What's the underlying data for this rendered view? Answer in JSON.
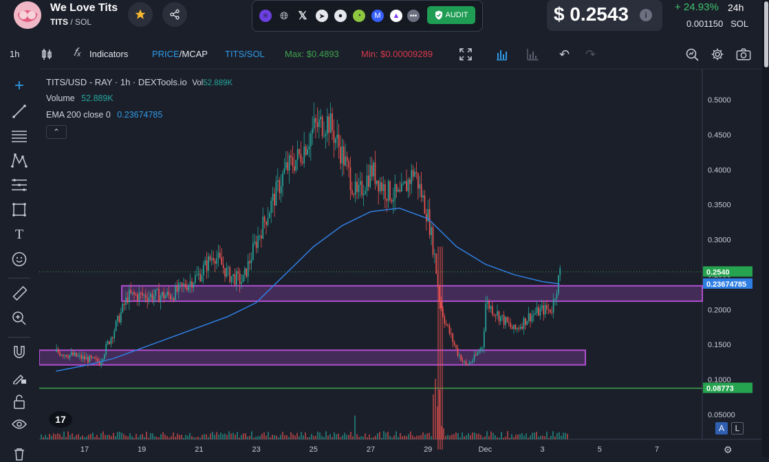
{
  "token": {
    "name": "We Love Tits",
    "symbol": "TITS",
    "chain": "SOL"
  },
  "social": {
    "icons": [
      "solana-icon",
      "globe-icon",
      "x-icon",
      "telegram-icon",
      "reddit-icon",
      "coingecko-icon",
      "coinmarketcap-icon",
      "dextools-icon",
      "more-icon"
    ],
    "audit_label": "AUDIT"
  },
  "price": {
    "usd": "$ 0.2543",
    "change": "+ 24.93%",
    "period": "24h",
    "sol": "0.001150",
    "sol_unit": "SOL"
  },
  "toolbar": {
    "interval": "1h",
    "indicators": "Indicators",
    "price_label": "PRICE",
    "mcap_label": "MCAP",
    "pair_label": "TITS/SOL",
    "max": "Max: $0.4893",
    "min": "Min: $0.00009289"
  },
  "legend": {
    "title": "TITS/USD - RAY · 1h · DEXTools.io",
    "vol_label": "Vol",
    "vol_value": "52.889K",
    "volume_label": "Volume",
    "volume_value": "52.889K",
    "ema_label": "EMA 200 close 0",
    "ema_value": "0.23674785"
  },
  "colors": {
    "up": "#26a69a",
    "down": "#ef5350",
    "ema": "#2f7fe3",
    "zone": "#b04fd0",
    "support": "#3fa34d",
    "price_tag": "#26a34f",
    "ema_tag": "#2f7fe3"
  },
  "chart_data": {
    "type": "candlestick",
    "y_axis_ticks": [
      "0.5000",
      "0.4500",
      "0.4000",
      "0.3500",
      "0.3000",
      "0.2500",
      "0.2000",
      "0.1500",
      "0.1000",
      "0.05000"
    ],
    "x_axis_ticks": [
      "17",
      "19",
      "21",
      "23",
      "25",
      "27",
      "29",
      "Dec",
      "3",
      "5",
      "7"
    ],
    "ylim": [
      0.0,
      0.52
    ],
    "current_price": "0.2540",
    "ema_value_tag": "0.23674785",
    "support_value_tag": "0.08773",
    "support_line_value": 0.08773,
    "zones": [
      {
        "x_from": "18 07:00",
        "x_to": "right edge",
        "low": 0.212,
        "high": 0.234
      },
      {
        "x_from": "16 00:00",
        "x_to": "3 12:00",
        "low": 0.121,
        "high": 0.142
      }
    ],
    "price_path": [
      {
        "x": "16",
        "y": 0.14
      },
      {
        "x": "17",
        "y": 0.13
      },
      {
        "x": "17.5",
        "y": 0.125
      },
      {
        "x": "18",
        "y": 0.17
      },
      {
        "x": "18.5",
        "y": 0.22
      },
      {
        "x": "19",
        "y": 0.22
      },
      {
        "x": "20",
        "y": 0.22
      },
      {
        "x": "21",
        "y": 0.25
      },
      {
        "x": "21.5",
        "y": 0.28
      },
      {
        "x": "22",
        "y": 0.25
      },
      {
        "x": "22.5",
        "y": 0.24
      },
      {
        "x": "23",
        "y": 0.3
      },
      {
        "x": "23.5",
        "y": 0.35
      },
      {
        "x": "24",
        "y": 0.4
      },
      {
        "x": "24.5",
        "y": 0.42
      },
      {
        "x": "25",
        "y": 0.46
      },
      {
        "x": "25.5",
        "y": 0.47
      },
      {
        "x": "26",
        "y": 0.42
      },
      {
        "x": "26.5",
        "y": 0.36
      },
      {
        "x": "27",
        "y": 0.4
      },
      {
        "x": "27.5",
        "y": 0.37
      },
      {
        "x": "28",
        "y": 0.36
      },
      {
        "x": "28.5",
        "y": 0.4
      },
      {
        "x": "29",
        "y": 0.33
      },
      {
        "x": "29.2",
        "y": 0.28
      },
      {
        "x": "29.4",
        "y": 0.21
      },
      {
        "x": "29.6",
        "y": 0.18
      },
      {
        "x": "30",
        "y": 0.14
      },
      {
        "x": "30.3",
        "y": 0.12
      },
      {
        "x": "30.6",
        "y": 0.13
      },
      {
        "x": "30.9",
        "y": 0.15
      },
      {
        "x": "Dec",
        "y": 0.21
      },
      {
        "x": "1.5",
        "y": 0.19
      },
      {
        "x": "2",
        "y": 0.17
      },
      {
        "x": "2.5",
        "y": 0.19
      },
      {
        "x": "3",
        "y": 0.2
      },
      {
        "x": "3.3",
        "y": 0.2
      },
      {
        "x": "3.6",
        "y": 0.254
      }
    ],
    "ema_path": [
      {
        "x": "16",
        "y": 0.112
      },
      {
        "x": "17",
        "y": 0.12
      },
      {
        "x": "18",
        "y": 0.13
      },
      {
        "x": "19",
        "y": 0.145
      },
      {
        "x": "20",
        "y": 0.16
      },
      {
        "x": "21",
        "y": 0.175
      },
      {
        "x": "22",
        "y": 0.19
      },
      {
        "x": "23",
        "y": 0.21
      },
      {
        "x": "24",
        "y": 0.25
      },
      {
        "x": "25",
        "y": 0.29
      },
      {
        "x": "26",
        "y": 0.32
      },
      {
        "x": "27",
        "y": 0.34
      },
      {
        "x": "28",
        "y": 0.345
      },
      {
        "x": "29",
        "y": 0.33
      },
      {
        "x": "30",
        "y": 0.29
      },
      {
        "x": "Dec",
        "y": 0.265
      },
      {
        "x": "2",
        "y": 0.25
      },
      {
        "x": "3",
        "y": 0.24
      },
      {
        "x": "3.6",
        "y": 0.2367
      }
    ]
  },
  "right_buttons": {
    "auto": "A",
    "log": "L"
  }
}
